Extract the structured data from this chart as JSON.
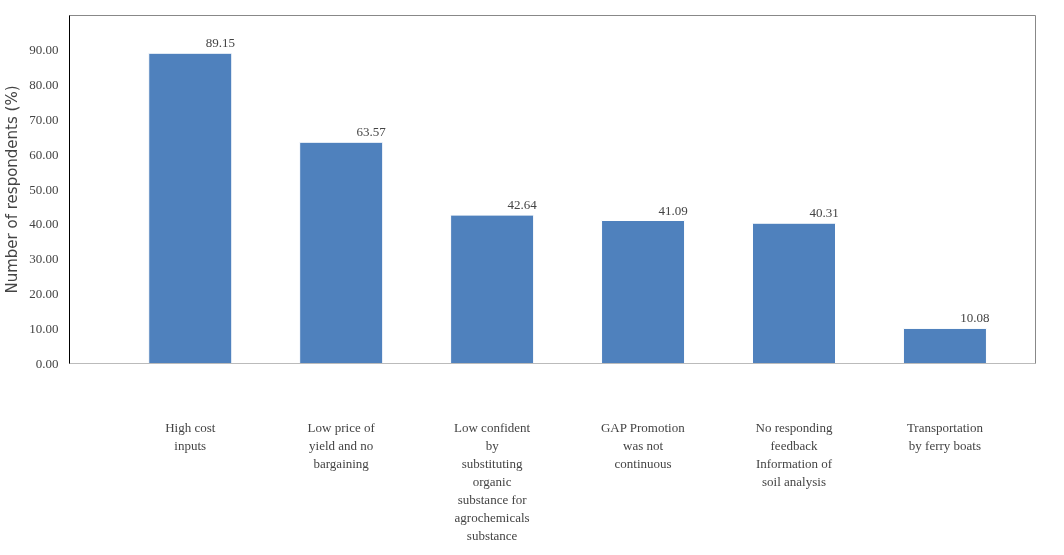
{
  "chart_data": {
    "type": "bar",
    "ylabel": "Number of respondents (%)",
    "categories": [
      "High cost inputs",
      "Low price of yield and no bargaining",
      "Low confident by substituting organic substance for agrochemicals substance",
      "GAP Promotion was not continuous",
      "No responding feedback Information of soil analysis",
      "Transportation by ferry boats"
    ],
    "values": [
      89.15,
      63.57,
      42.64,
      41.09,
      40.31,
      10.08
    ],
    "color": "#4f81bd",
    "data_labels": true,
    "grid": false,
    "ylim": [
      0,
      100
    ],
    "yticks": [
      {
        "value": 0,
        "label": "0.00"
      },
      {
        "value": 10,
        "label": "10.00"
      },
      {
        "value": 20,
        "label": "20.00"
      },
      {
        "value": 30,
        "label": "30.00"
      },
      {
        "value": 40,
        "label": "40.00"
      },
      {
        "value": 50,
        "label": "50.00"
      },
      {
        "value": 60,
        "label": "60.00"
      },
      {
        "value": 70,
        "label": "70.00"
      },
      {
        "value": 80,
        "label": "80.00"
      },
      {
        "value": 90,
        "label": "90.00"
      }
    ]
  }
}
